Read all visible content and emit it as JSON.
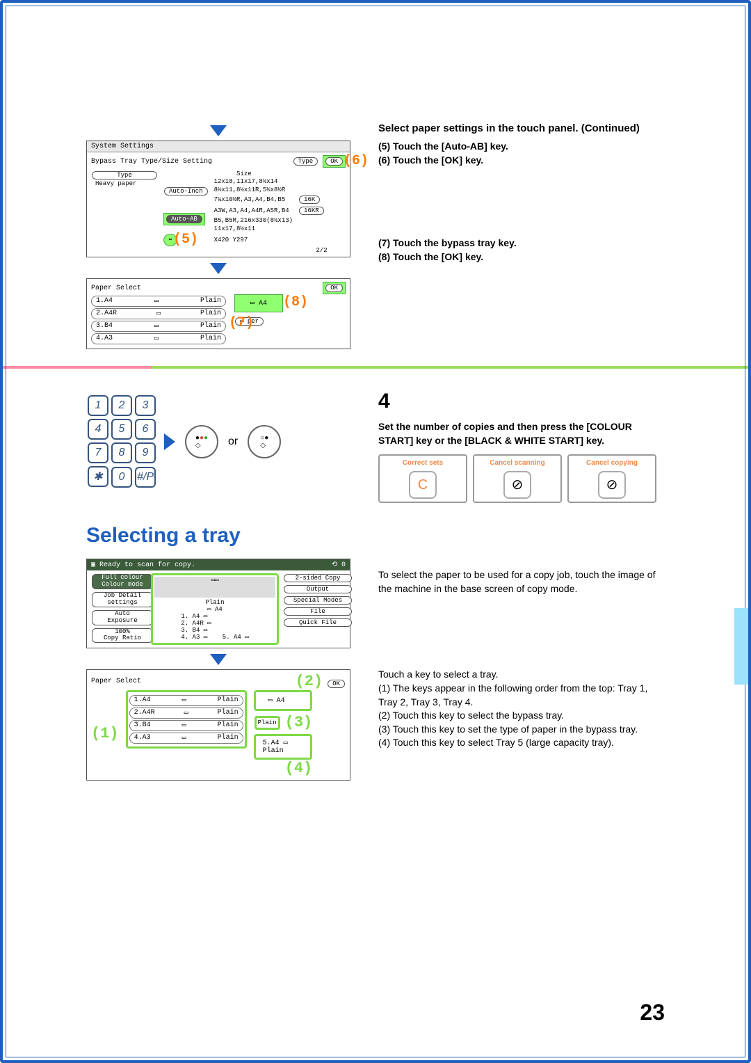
{
  "panel1": {
    "title": "System Settings",
    "subtitle": "Bypass Tray Type/Size Setting",
    "type_btn": "Type",
    "ok_btn": "OK",
    "type_label": "Type",
    "type_value": "Heavy paper",
    "auto_inch": "Auto-Inch",
    "auto_ab": "Auto-AB",
    "size_header": "Size",
    "size_row1": "12x18,11x17,8½x14",
    "size_row2": "8½x11,8½x11R,5½x8½R",
    "size_row3": "7¼x10½R,A3,A4,B4,B5",
    "size_row4": "A3W,A3,A4,A4R,A5R,B4",
    "size_row5": "B5,B5R,216x330(8½x13)",
    "size_row6": "11x17,8½x11",
    "direct": "X420 Y297",
    "k16": "16K",
    "k16r": "16KR",
    "page_ind": "2/2",
    "callout5": "(5)",
    "callout6": "(6)"
  },
  "panel2": {
    "title": "Paper Select",
    "ok_btn": "OK",
    "rows": [
      {
        "n": "1.A4",
        "t": "Plain"
      },
      {
        "n": "2.A4R",
        "t": "Plain"
      },
      {
        "n": "3.B4",
        "t": "Plain"
      },
      {
        "n": "4.A3",
        "t": "Plain"
      }
    ],
    "bypass_label": "A4",
    "bypass_type": "per",
    "callout7": "(7)",
    "callout8": "(8)"
  },
  "right1": {
    "h1": "Select paper settings in the touch panel. (Continued)",
    "s5": "(5)  Touch the [Auto-AB] key.",
    "s6": "(6)  Touch the [OK] key.",
    "s7": "(7)  Touch the bypass tray key.",
    "s8": "(8)  Touch the [OK] key."
  },
  "step4": {
    "num": "4",
    "h": "Set the number of copies and then press the [COLOUR START] key or the [BLACK & WHITE START] key.",
    "or": "or",
    "a1": "Correct sets",
    "a2": "Cancel scanning",
    "a3": "Cancel copying",
    "c": "C"
  },
  "sectionTitle": "Selecting a tray",
  "panel3": {
    "status": "Ready to scan for copy.",
    "count": "0",
    "btns_left": [
      "Full colour",
      "Colour mode",
      "Job Detail",
      "settings",
      "Auto",
      "Exposure",
      "100%",
      "Copy Ratio"
    ],
    "btns_right": [
      "2-sided Copy",
      "Output",
      "Special Modes",
      "File",
      "Quick File"
    ],
    "center1": "Plain",
    "center2": "A4",
    "list": [
      "1. A4",
      "2. A4R",
      "3. B4",
      "4. A3"
    ],
    "side": "A4"
  },
  "panel4": {
    "title": "Paper Select",
    "ok_btn": "OK",
    "rows": [
      {
        "n": "1.A4",
        "t": "Plain"
      },
      {
        "n": "2.A4R",
        "t": "Plain"
      },
      {
        "n": "3.B4",
        "t": "Plain"
      },
      {
        "n": "4.A3",
        "t": "Plain"
      }
    ],
    "bypass_a4": "A4",
    "bypass_plain": "Plain",
    "tray5": "5.A4",
    "tray5_plain": "Plain",
    "c1": "(1)",
    "c2": "(2)",
    "c3": "(3)",
    "c4": "(4)"
  },
  "right2": {
    "p1": "To select the paper to be used for a copy job, touch the image of the machine in the base screen of copy mode.",
    "p2": "Touch a key to select a tray.",
    "l1": "(1) The keys appear in the following order from the top: Tray 1, Tray 2, Tray 3, Tray 4.",
    "l2": "(2) Touch this key to select the bypass tray.",
    "l3": "(3) Touch this key to set the type of paper in the bypass tray.",
    "l4": "(4) Touch this key to select Tray 5 (large capacity tray)."
  },
  "pageNum": "23",
  "keys": [
    "1",
    "2",
    "3",
    "4",
    "5",
    "6",
    "7",
    "8",
    "9",
    "✱",
    "0",
    "#/P"
  ]
}
